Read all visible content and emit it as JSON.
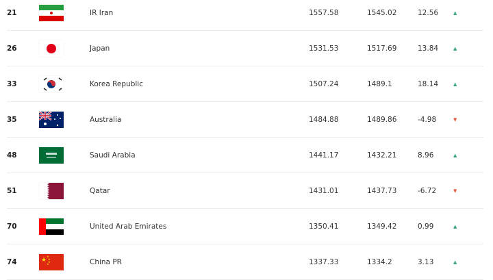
{
  "colors": {
    "up": "#3aa57a",
    "down": "#e06040"
  },
  "rows": [
    {
      "rank": "21",
      "flag": "iran-flag",
      "name": "IR Iran",
      "points": "1557.58",
      "previous": "1545.02",
      "change": "12.56",
      "trend": "up"
    },
    {
      "rank": "26",
      "flag": "japan-flag",
      "name": "Japan",
      "points": "1531.53",
      "previous": "1517.69",
      "change": "13.84",
      "trend": "up"
    },
    {
      "rank": "33",
      "flag": "korea-flag",
      "name": "Korea Republic",
      "points": "1507.24",
      "previous": "1489.1",
      "change": "18.14",
      "trend": "up"
    },
    {
      "rank": "35",
      "flag": "australia-flag",
      "name": "Australia",
      "points": "1484.88",
      "previous": "1489.86",
      "change": "-4.98",
      "trend": "down"
    },
    {
      "rank": "48",
      "flag": "saudi-arabia-flag",
      "name": "Saudi Arabia",
      "points": "1441.17",
      "previous": "1432.21",
      "change": "8.96",
      "trend": "up"
    },
    {
      "rank": "51",
      "flag": "qatar-flag",
      "name": "Qatar",
      "points": "1431.01",
      "previous": "1437.73",
      "change": "-6.72",
      "trend": "down"
    },
    {
      "rank": "70",
      "flag": "uae-flag",
      "name": "United Arab Emirates",
      "points": "1350.41",
      "previous": "1349.42",
      "change": "0.99",
      "trend": "up"
    },
    {
      "rank": "74",
      "flag": "china-flag",
      "name": "China PR",
      "points": "1337.33",
      "previous": "1334.2",
      "change": "3.13",
      "trend": "up"
    }
  ]
}
